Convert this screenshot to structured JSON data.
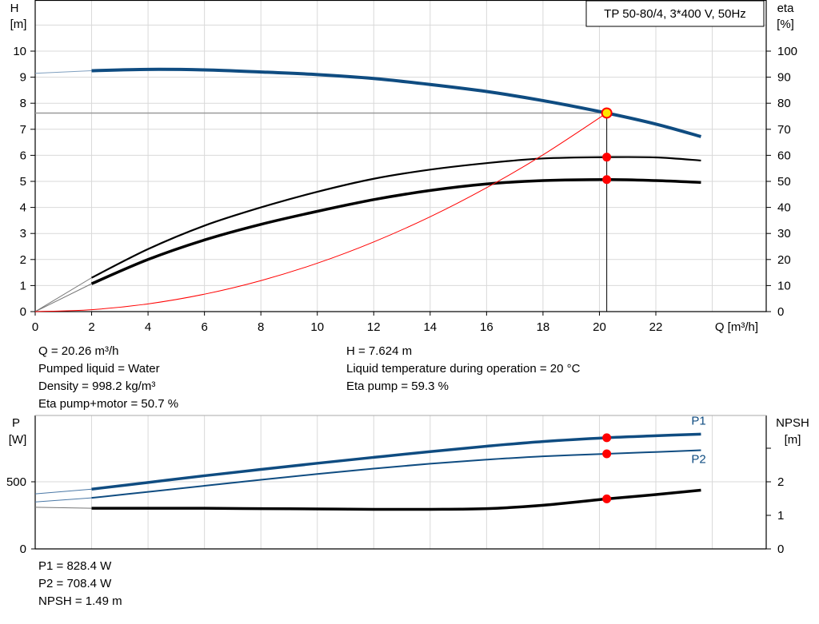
{
  "chart_data": [
    {
      "type": "line",
      "title": "TP 50-80/4, 3*400 V, 50Hz",
      "xlabel": "Q [m³/h]",
      "ylabel": "H",
      "ylabel_unit": "[m]",
      "y2label": "eta",
      "y2label_unit": "[%]",
      "xlim": [
        0,
        26
      ],
      "ylim": [
        0,
        12
      ],
      "y2lim": [
        0,
        120
      ],
      "xticks": [
        "0",
        "2",
        "4",
        "6",
        "8",
        "10",
        "12",
        "14",
        "16",
        "18",
        "20",
        "22"
      ],
      "yticks": [
        "0",
        "1",
        "2",
        "3",
        "4",
        "5",
        "6",
        "7",
        "8",
        "9",
        "10"
      ],
      "y2ticks": [
        "0",
        "10",
        "20",
        "30",
        "40",
        "50",
        "60",
        "70",
        "80",
        "90",
        "100"
      ],
      "grid": true,
      "duty_point": {
        "Q": 20.26,
        "H": 7.624,
        "eta_pump": 59.3,
        "eta_total": 50.7
      },
      "series": [
        {
          "id": "H",
          "axis": "left",
          "color": "#0f4c81",
          "x": [
            0,
            2,
            4,
            6,
            8,
            10,
            12,
            14,
            16,
            18,
            20.26,
            22,
            23.6
          ],
          "y": [
            9.15,
            9.25,
            9.3,
            9.28,
            9.2,
            9.1,
            8.95,
            8.72,
            8.45,
            8.1,
            7.624,
            7.2,
            6.72
          ]
        },
        {
          "id": "eta-pump",
          "axis": "right",
          "color": "#000000",
          "x": [
            0,
            2,
            4,
            6,
            8,
            10,
            12,
            14,
            16,
            18,
            20.26,
            22,
            23.6
          ],
          "y": [
            0,
            13,
            24,
            33,
            40,
            46,
            51,
            54.5,
            57,
            58.8,
            59.3,
            59.2,
            58
          ]
        },
        {
          "id": "eta-pump-motor",
          "axis": "right",
          "color": "#000000",
          "x": [
            0,
            2,
            4,
            6,
            8,
            10,
            12,
            14,
            16,
            18,
            20.26,
            22,
            23.6
          ],
          "y": [
            0,
            10.7,
            20,
            27.5,
            33.5,
            38.5,
            43,
            46.5,
            49,
            50.3,
            50.7,
            50.3,
            49.6
          ]
        },
        {
          "id": "system-curve",
          "axis": "left",
          "color": "#ff0000",
          "x": [
            0,
            2,
            4,
            6,
            8,
            10,
            12,
            14,
            16,
            18,
            20.26
          ],
          "y": [
            0,
            0.074,
            0.297,
            0.669,
            1.189,
            1.857,
            2.675,
            3.641,
            4.755,
            6.018,
            7.624
          ]
        }
      ]
    },
    {
      "type": "line",
      "xlabel": "",
      "ylabel": "P",
      "ylabel_unit": "[W]",
      "y2label": "NPSH",
      "y2label_unit": "[m]",
      "xlim": [
        0,
        26
      ],
      "ylim": [
        0,
        1000
      ],
      "y2lim": [
        0,
        4
      ],
      "yticks": [
        "0",
        "500"
      ],
      "y2ticks": [
        "0",
        "1",
        "2"
      ],
      "grid": true,
      "series": [
        {
          "id": "P1",
          "name": "P1",
          "axis": "left",
          "color": "#0f4c81",
          "x": [
            0,
            2,
            4,
            6,
            8,
            10,
            12,
            14,
            16,
            18,
            20.26,
            22,
            23.6
          ],
          "y": [
            410,
            445,
            495,
            545,
            592,
            638,
            682,
            725,
            765,
            800,
            828.4,
            843,
            855
          ]
        },
        {
          "id": "P2",
          "name": "P2",
          "axis": "left",
          "color": "#0f4c81",
          "x": [
            0,
            2,
            4,
            6,
            8,
            10,
            12,
            14,
            16,
            18,
            20.26,
            22,
            23.6
          ],
          "y": [
            350,
            380,
            425,
            470,
            515,
            558,
            598,
            635,
            665,
            690,
            708.4,
            722,
            735
          ]
        },
        {
          "id": "NPSH",
          "axis": "right",
          "color": "#000000",
          "x": [
            0,
            2,
            4,
            6,
            8,
            10,
            12,
            14,
            16,
            18,
            20.26,
            22,
            23.6
          ],
          "y": [
            1.24,
            1.21,
            1.21,
            1.21,
            1.2,
            1.19,
            1.18,
            1.18,
            1.2,
            1.3,
            1.49,
            1.62,
            1.75
          ]
        }
      ]
    }
  ],
  "info_top_left": [
    "Q = 20.26 m³/h",
    "Pumped liquid = Water",
    "Density = 998.2 kg/m³",
    "Eta pump+motor = 50.7 %"
  ],
  "info_top_right": [
    "H = 7.624 m",
    "Liquid temperature during operation = 20 °C",
    "Eta pump = 59.3 %"
  ],
  "info_bottom": [
    "P1 = 828.4 W",
    "P2 = 708.4 W",
    "NPSH = 1.49 m"
  ]
}
